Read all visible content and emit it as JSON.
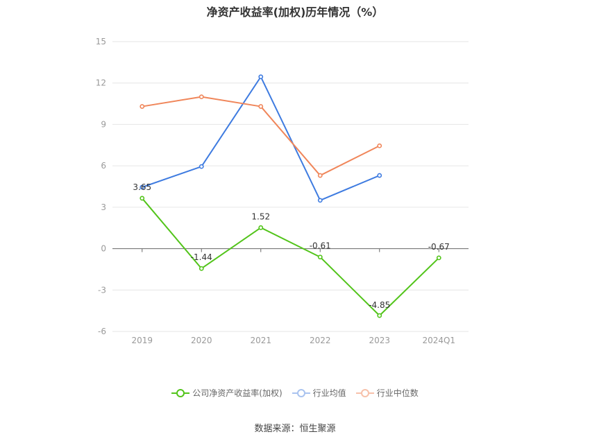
{
  "title": "净资产收益率(加权)历年情况（%）",
  "source_text": "数据来源：恒生聚源",
  "chart_data": {
    "type": "line",
    "title": "净资产收益率(加权)历年情况（%）",
    "categories": [
      "2019",
      "2020",
      "2021",
      "2022",
      "2023",
      "2024Q1"
    ],
    "ylim": [
      -6,
      15
    ],
    "yticks": [
      15,
      12,
      9,
      6,
      3,
      0,
      -3,
      -6
    ],
    "grid": true,
    "legend_position": "bottom",
    "series": [
      {
        "name": "公司净资产收益率(加权)",
        "color": "#52c41a",
        "values": [
          3.65,
          -1.44,
          1.52,
          -0.61,
          -4.85,
          -0.67
        ],
        "labels": [
          "3.65",
          "-1.44",
          "1.52",
          "-0.61",
          "-4.85",
          "-0.67"
        ]
      },
      {
        "name": "行业均值",
        "color": "#3e7be0",
        "values": [
          4.45,
          5.95,
          12.45,
          3.5,
          5.3,
          null
        ]
      },
      {
        "name": "行业中位数",
        "color": "#f0865a",
        "values": [
          10.3,
          11.0,
          10.3,
          5.3,
          7.45,
          null
        ]
      }
    ]
  }
}
